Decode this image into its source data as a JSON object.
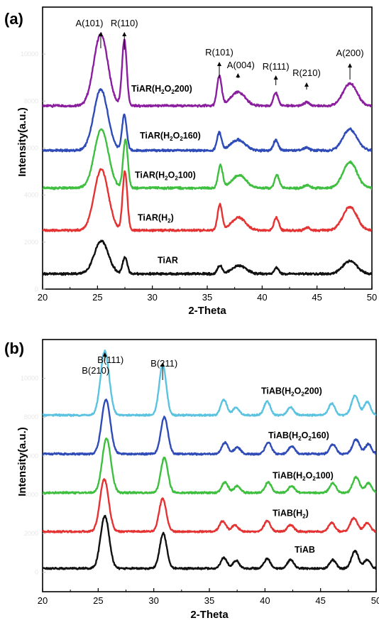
{
  "chart_data": [
    {
      "type": "line",
      "panel_label": "(a)",
      "xlabel": "2-Theta",
      "ylabel": "Intensity(a.u.)",
      "xlim": [
        20,
        50
      ],
      "x_ticks": [
        20,
        25,
        30,
        35,
        40,
        45,
        50
      ],
      "ylim": [
        0,
        12000
      ],
      "y_ticks": [
        0,
        2000,
        4000,
        6000,
        8000,
        10000
      ],
      "grid": false,
      "series": [
        {
          "name": "TiAR(H2O2200)",
          "color": "#8B1E9E",
          "offset": 7800,
          "peaks": [
            [
              25.3,
              3050,
              0.9
            ],
            [
              27.45,
              2800,
              0.3
            ],
            [
              36.1,
              1250,
              0.3
            ],
            [
              37.8,
              600,
              0.9
            ],
            [
              41.25,
              550,
              0.3
            ],
            [
              44.05,
              150,
              0.35
            ],
            [
              48.0,
              950,
              0.9
            ]
          ]
        },
        {
          "name": "TiAR(H2O2160)",
          "color": "#2F4BB8",
          "offset": 5900,
          "peaks": [
            [
              25.3,
              2600,
              0.9
            ],
            [
              27.45,
              1500,
              0.3
            ],
            [
              36.1,
              750,
              0.3
            ],
            [
              37.8,
              450,
              0.9
            ],
            [
              41.25,
              450,
              0.3
            ],
            [
              44.05,
              120,
              0.35
            ],
            [
              48.0,
              900,
              0.9
            ]
          ]
        },
        {
          "name": "TiAR(H2O2100)",
          "color": "#3FBF3F",
          "offset": 4300,
          "peaks": [
            [
              25.35,
              2500,
              0.9
            ],
            [
              27.55,
              2050,
              0.3
            ],
            [
              36.2,
              950,
              0.3
            ],
            [
              37.9,
              550,
              0.9
            ],
            [
              41.35,
              550,
              0.3
            ],
            [
              44.1,
              130,
              0.35
            ],
            [
              48.0,
              1100,
              0.9
            ]
          ]
        },
        {
          "name": "TiAR(H2)",
          "color": "#E53232",
          "offset": 2500,
          "peaks": [
            [
              25.35,
              2600,
              0.9
            ],
            [
              27.5,
              2500,
              0.3
            ],
            [
              36.15,
              1100,
              0.3
            ],
            [
              37.85,
              550,
              0.9
            ],
            [
              41.3,
              550,
              0.3
            ],
            [
              44.1,
              120,
              0.35
            ],
            [
              48.0,
              1000,
              0.9
            ]
          ]
        },
        {
          "name": "TiAR",
          "color": "#111111",
          "offset": 650,
          "peaks": [
            [
              25.35,
              1400,
              0.9
            ],
            [
              27.5,
              700,
              0.3
            ],
            [
              36.15,
              350,
              0.3
            ],
            [
              37.9,
              350,
              0.9
            ],
            [
              41.3,
              250,
              0.3
            ],
            [
              48.0,
              550,
              0.9
            ]
          ]
        }
      ],
      "series_labels": [
        {
          "main": "TiAR(H",
          "sub1": "2",
          "mid": "O",
          "sub2": "2",
          "tail": "200)"
        },
        {
          "main": "TiAR(H",
          "sub1": "2",
          "mid": "O",
          "sub2": "2",
          "tail": "160)"
        },
        {
          "main": "TiAR(H",
          "sub1": "2",
          "mid": "O",
          "sub2": "2",
          "tail": "100)"
        },
        {
          "main": "TiAR(H",
          "sub1": "2",
          "mid": ")",
          "sub2": "",
          "tail": ""
        },
        {
          "main": "TiAR",
          "sub1": "",
          "mid": "",
          "sub2": "",
          "tail": ""
        }
      ],
      "annotations": [
        {
          "text": "A(101)",
          "x": 25.3
        },
        {
          "text": "R(110)",
          "x": 27.45
        },
        {
          "text": "R(101)",
          "x": 36.1
        },
        {
          "text": "A(004)",
          "x": 37.8
        },
        {
          "text": "R(111)",
          "x": 41.25
        },
        {
          "text": "R(210)",
          "x": 44.05
        },
        {
          "text": "A(200)",
          "x": 48.0
        }
      ]
    },
    {
      "type": "line",
      "panel_label": "(b)",
      "xlabel": "2-Theta",
      "ylabel": "Intensity(a.u.)",
      "xlim": [
        20,
        50
      ],
      "x_ticks": [
        20,
        25,
        30,
        35,
        40,
        45,
        50
      ],
      "ylim": [
        -1000,
        12000
      ],
      "y_ticks": [
        0,
        2000,
        4000,
        6000,
        8000,
        10000
      ],
      "grid": false,
      "series": [
        {
          "name": "TiAB(H2O2200)",
          "color": "#5BC3E0",
          "offset": 8100,
          "peaks": [
            [
              25.6,
              3300,
              0.55
            ],
            [
              30.8,
              2600,
              0.45
            ],
            [
              36.3,
              800,
              0.4
            ],
            [
              37.4,
              400,
              0.4
            ],
            [
              40.2,
              700,
              0.4
            ],
            [
              42.3,
              400,
              0.4
            ],
            [
              46.0,
              600,
              0.4
            ],
            [
              48.1,
              1000,
              0.45
            ],
            [
              49.2,
              700,
              0.4
            ]
          ]
        },
        {
          "name": "TiAB(H2O2160)",
          "color": "#2F4BB8",
          "offset": 6100,
          "peaks": [
            [
              25.7,
              2800,
              0.55
            ],
            [
              30.95,
              1900,
              0.45
            ],
            [
              36.4,
              600,
              0.4
            ],
            [
              37.5,
              350,
              0.4
            ],
            [
              40.3,
              600,
              0.4
            ],
            [
              42.4,
              400,
              0.4
            ],
            [
              46.1,
              500,
              0.4
            ],
            [
              48.2,
              750,
              0.45
            ],
            [
              49.3,
              500,
              0.4
            ]
          ]
        },
        {
          "name": "TiAB(H2O2100)",
          "color": "#3FBF3F",
          "offset": 4100,
          "peaks": [
            [
              25.75,
              2800,
              0.55
            ],
            [
              30.95,
              1800,
              0.45
            ],
            [
              36.4,
              550,
              0.4
            ],
            [
              37.5,
              350,
              0.4
            ],
            [
              40.3,
              550,
              0.4
            ],
            [
              42.4,
              350,
              0.4
            ],
            [
              46.1,
              500,
              0.4
            ],
            [
              48.2,
              800,
              0.45
            ],
            [
              49.3,
              500,
              0.4
            ]
          ]
        },
        {
          "name": "TiAB(H2)",
          "color": "#E53232",
          "offset": 2100,
          "peaks": [
            [
              25.55,
              2700,
              0.55
            ],
            [
              30.8,
              1700,
              0.45
            ],
            [
              36.2,
              550,
              0.4
            ],
            [
              37.3,
              350,
              0.4
            ],
            [
              40.2,
              550,
              0.4
            ],
            [
              42.3,
              350,
              0.4
            ],
            [
              46.0,
              450,
              0.4
            ],
            [
              48.0,
              700,
              0.45
            ],
            [
              49.2,
              450,
              0.4
            ]
          ]
        },
        {
          "name": "TiAB",
          "color": "#111111",
          "offset": 200,
          "peaks": [
            [
              25.6,
              2700,
              0.55
            ],
            [
              30.85,
              1800,
              0.45
            ],
            [
              36.3,
              550,
              0.4
            ],
            [
              37.4,
              400,
              0.4
            ],
            [
              40.2,
              500,
              0.4
            ],
            [
              42.3,
              450,
              0.4
            ],
            [
              46.1,
              450,
              0.4
            ],
            [
              48.1,
              900,
              0.45
            ],
            [
              49.2,
              450,
              0.4
            ]
          ]
        }
      ],
      "series_labels": [
        {
          "main": "TiAB(H",
          "sub1": "2",
          "mid": "O",
          "sub2": "2",
          "tail": "200)"
        },
        {
          "main": "TiAB(H",
          "sub1": "2",
          "mid": "O",
          "sub2": "2",
          "tail": "160)"
        },
        {
          "main": "TiAB(H",
          "sub1": "2",
          "mid": "O",
          "sub2": "2",
          "tail": "100)"
        },
        {
          "main": "TiAB(H",
          "sub1": "2",
          "mid": ")",
          "sub2": "",
          "tail": ""
        },
        {
          "main": "TiAB",
          "sub1": "",
          "mid": "",
          "sub2": "",
          "tail": ""
        }
      ],
      "annotations": [
        {
          "text": "B(210)",
          "x": 25.6
        },
        {
          "text": "B(111)",
          "x": 25.6
        },
        {
          "text": "B(211)",
          "x": 30.8
        }
      ]
    }
  ]
}
